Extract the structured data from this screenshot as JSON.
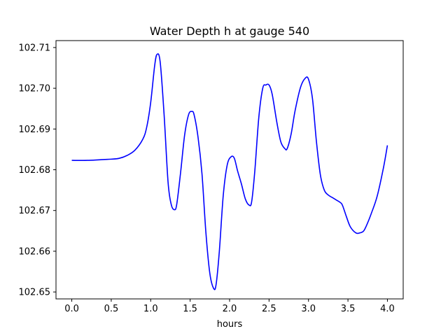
{
  "chart_data": {
    "type": "line",
    "title": "Water Depth h at gauge 540",
    "xlabel": "hours",
    "ylabel": "",
    "xlim": [
      -0.2,
      4.2
    ],
    "ylim": [
      102.6483,
      102.7117
    ],
    "x_ticks": [
      0.0,
      0.5,
      1.0,
      1.5,
      2.0,
      2.5,
      3.0,
      3.5,
      4.0
    ],
    "x_tick_labels": [
      "0.0",
      "0.5",
      "1.0",
      "1.5",
      "2.0",
      "2.5",
      "3.0",
      "3.5",
      "4.0"
    ],
    "y_ticks": [
      102.65,
      102.66,
      102.67,
      102.68,
      102.69,
      102.7,
      102.71
    ],
    "y_tick_labels": [
      "102.65",
      "102.66",
      "102.67",
      "102.68",
      "102.69",
      "102.70",
      "102.71"
    ],
    "grid": false,
    "series": [
      {
        "color": "#0000ff",
        "x": [
          0.0,
          0.2,
          0.4,
          0.5,
          0.6,
          0.7,
          0.8,
          0.9,
          0.95,
          1.0,
          1.05,
          1.08,
          1.12,
          1.17,
          1.22,
          1.26,
          1.3,
          1.33,
          1.38,
          1.43,
          1.48,
          1.52,
          1.55,
          1.6,
          1.65,
          1.7,
          1.75,
          1.8,
          1.83,
          1.87,
          1.92,
          1.97,
          2.02,
          2.06,
          2.1,
          2.15,
          2.2,
          2.25,
          2.28,
          2.32,
          2.37,
          2.42,
          2.46,
          2.5,
          2.54,
          2.6,
          2.65,
          2.7,
          2.73,
          2.78,
          2.83,
          2.9,
          2.96,
          3.0,
          3.05,
          3.1,
          3.15,
          3.2,
          3.25,
          3.3,
          3.35,
          3.4,
          3.43,
          3.48,
          3.53,
          3.6,
          3.65,
          3.7,
          3.75,
          3.8,
          3.87,
          3.95,
          4.0
        ],
        "y": [
          102.6823,
          102.6823,
          102.6825,
          102.6826,
          102.6828,
          102.6835,
          102.6848,
          102.6875,
          102.6905,
          102.6965,
          102.7055,
          102.7083,
          102.7065,
          102.6935,
          102.677,
          102.6715,
          102.6702,
          102.6715,
          102.6795,
          102.6885,
          102.6935,
          102.6943,
          102.6935,
          102.688,
          102.679,
          102.6645,
          102.6545,
          102.6508,
          102.652,
          102.66,
          102.6738,
          102.6812,
          102.6832,
          102.6828,
          102.6798,
          102.6765,
          102.6728,
          102.6713,
          102.6722,
          102.6798,
          102.6928,
          102.7,
          102.7008,
          102.7008,
          102.6985,
          102.6915,
          102.6868,
          102.6852,
          102.6852,
          102.6888,
          102.6945,
          102.7003,
          102.7025,
          102.7022,
          102.6975,
          102.687,
          102.6788,
          102.675,
          102.6738,
          102.6732,
          102.6726,
          102.672,
          102.6713,
          102.6685,
          102.666,
          102.6645,
          102.6645,
          102.665,
          102.667,
          102.6695,
          102.6735,
          102.6805,
          102.686
        ]
      }
    ]
  }
}
